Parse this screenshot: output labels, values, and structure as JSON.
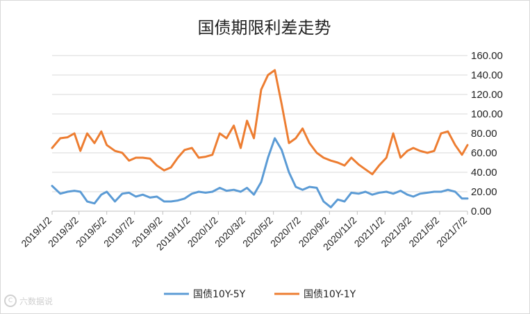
{
  "chart_data": {
    "type": "line",
    "title": "国债期限利差走势",
    "xlabel": "",
    "ylabel": "",
    "ylim": [
      0,
      160
    ],
    "y_ticks": [
      "0.00",
      "20.00",
      "40.00",
      "60.00",
      "80.00",
      "100.00",
      "120.00",
      "140.00",
      "160.00"
    ],
    "x_ticks": [
      "2019/1/2",
      "2019/3/2",
      "2019/5/2",
      "2019/7/2",
      "2019/9/2",
      "2019/11/2",
      "2020/1/2",
      "2020/3/2",
      "2020/5/2",
      "2020/7/2",
      "2020/9/2",
      "2020/11/2",
      "2021/1/2",
      "2021/3/2",
      "2021/5/2",
      "2021/7/2"
    ],
    "grid": "horizontal",
    "legend_position": "bottom",
    "series": [
      {
        "name": "国债10Y-5Y",
        "color": "#5b9bd5",
        "x": [
          "2019/1/2",
          "2019/1/20",
          "2019/2/5",
          "2019/2/20",
          "2019/3/5",
          "2019/3/20",
          "2019/4/5",
          "2019/4/20",
          "2019/5/2",
          "2019/5/20",
          "2019/6/5",
          "2019/6/20",
          "2019/7/5",
          "2019/7/20",
          "2019/8/5",
          "2019/8/20",
          "2019/9/5",
          "2019/9/20",
          "2019/10/5",
          "2019/10/20",
          "2019/11/5",
          "2019/11/20",
          "2019/12/5",
          "2019/12/20",
          "2020/1/5",
          "2020/1/20",
          "2020/2/5",
          "2020/2/20",
          "2020/3/5",
          "2020/3/20",
          "2020/4/5",
          "2020/4/20",
          "2020/5/5",
          "2020/5/20",
          "2020/6/5",
          "2020/6/20",
          "2020/7/5",
          "2020/7/20",
          "2020/8/5",
          "2020/8/20",
          "2020/9/5",
          "2020/9/20",
          "2020/10/5",
          "2020/10/20",
          "2020/11/5",
          "2020/11/20",
          "2020/12/5",
          "2020/12/20",
          "2021/1/5",
          "2021/1/20",
          "2021/2/5",
          "2021/2/20",
          "2021/3/5",
          "2021/3/20",
          "2021/4/5",
          "2021/4/20",
          "2021/5/5",
          "2021/5/20",
          "2021/6/5",
          "2021/6/20",
          "2021/7/2"
        ],
        "values": [
          26,
          18,
          20,
          21,
          20,
          10,
          8,
          17,
          20,
          10,
          18,
          19,
          15,
          17,
          14,
          15,
          10,
          10,
          11,
          13,
          18,
          20,
          19,
          20,
          24,
          21,
          22,
          20,
          24,
          17,
          30,
          55,
          75,
          63,
          40,
          25,
          22,
          25,
          24,
          10,
          4,
          12,
          10,
          19,
          18,
          20,
          17,
          19,
          20,
          18,
          21,
          17,
          15,
          18,
          19,
          20,
          20,
          22,
          20,
          13,
          13
        ]
      },
      {
        "name": "国债10Y-1Y",
        "color": "#ed7d31",
        "x": [
          "2019/1/2",
          "2019/1/20",
          "2019/2/5",
          "2019/2/20",
          "2019/3/5",
          "2019/3/20",
          "2019/4/5",
          "2019/4/20",
          "2019/5/2",
          "2019/5/20",
          "2019/6/5",
          "2019/6/20",
          "2019/7/5",
          "2019/7/20",
          "2019/8/5",
          "2019/8/20",
          "2019/9/5",
          "2019/9/20",
          "2019/10/5",
          "2019/10/20",
          "2019/11/5",
          "2019/11/20",
          "2019/12/5",
          "2019/12/20",
          "2020/1/5",
          "2020/1/20",
          "2020/2/5",
          "2020/2/20",
          "2020/3/5",
          "2020/3/20",
          "2020/4/5",
          "2020/4/20",
          "2020/5/5",
          "2020/5/20",
          "2020/6/5",
          "2020/6/20",
          "2020/7/5",
          "2020/7/20",
          "2020/8/5",
          "2020/8/20",
          "2020/9/5",
          "2020/9/20",
          "2020/10/5",
          "2020/10/20",
          "2020/11/5",
          "2020/11/20",
          "2020/12/5",
          "2020/12/20",
          "2021/1/5",
          "2021/1/20",
          "2021/2/5",
          "2021/2/20",
          "2021/3/5",
          "2021/3/20",
          "2021/4/5",
          "2021/4/20",
          "2021/5/5",
          "2021/5/20",
          "2021/6/5",
          "2021/6/20",
          "2021/7/2"
        ],
        "values": [
          65,
          75,
          76,
          80,
          62,
          80,
          70,
          82,
          68,
          62,
          60,
          52,
          55,
          55,
          54,
          47,
          42,
          45,
          55,
          63,
          65,
          55,
          56,
          58,
          80,
          75,
          88,
          65,
          93,
          75,
          125,
          140,
          145,
          110,
          70,
          75,
          85,
          70,
          60,
          55,
          52,
          50,
          47,
          55,
          48,
          43,
          38,
          47,
          55,
          80,
          55,
          62,
          65,
          62,
          60,
          62,
          80,
          82,
          68,
          58,
          68
        ]
      }
    ]
  },
  "watermark_text": "六数据说"
}
